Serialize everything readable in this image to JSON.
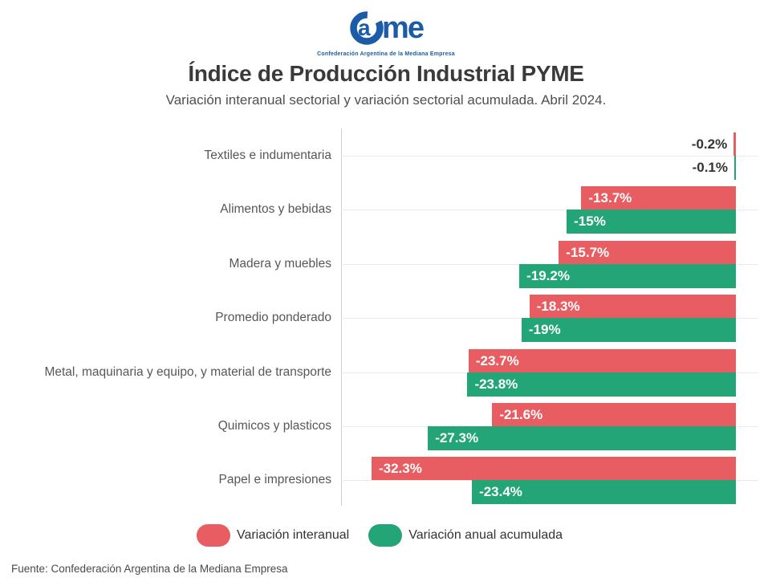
{
  "logo": {
    "letter_a": "a",
    "letters_me": "me",
    "tagline": "Confederación Argentina de la Mediana Empresa",
    "color": "#1B5BA8"
  },
  "header": {
    "title": "Índice de Producción Industrial PYME",
    "subtitle": "Variación interanual sectorial y variación sectorial acumulada. Abril 2024."
  },
  "chart_data": {
    "type": "bar",
    "orientation": "horizontal",
    "title": "Índice de Producción Industrial PYME",
    "subtitle": "Variación interanual sectorial y variación sectorial acumulada. Abril 2024.",
    "xlim": [
      -35,
      2
    ],
    "grid": "light horizontal gridline at each category center",
    "legend_position": "bottom",
    "zero_anchor": "right",
    "categories": [
      "Textiles e indumentaria",
      "Alimentos y bebidas",
      "Madera y muebles",
      "Promedio ponderado",
      "Metal, maquinaria y equipo, y material de transporte",
      "Quimicos y plasticos",
      "Papel e impresiones"
    ],
    "series": [
      {
        "name": "Variación interanual",
        "color": "#E85D61",
        "values": [
          -0.2,
          -13.7,
          -15.7,
          -18.3,
          -23.7,
          -21.6,
          -32.3
        ],
        "labels": [
          "-0.2%",
          "-13.7%",
          "-15.7%",
          "-18.3%",
          "-23.7%",
          "-21.6%",
          "-32.3%"
        ]
      },
      {
        "name": "Variación anual acumulada",
        "color": "#23A578",
        "values": [
          -0.1,
          -15,
          -19.2,
          -19,
          -23.8,
          -27.3,
          -23.4
        ],
        "labels": [
          "-0.1%",
          "-15%",
          "-19.2%",
          "-19%",
          "-23.8%",
          "-27.3%",
          "-23.4%"
        ]
      }
    ]
  },
  "legend": {
    "items": [
      {
        "label": "Variación interanual",
        "color": "#E85D61"
      },
      {
        "label": "Variación anual acumulada",
        "color": "#23A578"
      }
    ]
  },
  "footer": {
    "source": "Fuente: Confederación Argentina de la Mediana Empresa"
  }
}
